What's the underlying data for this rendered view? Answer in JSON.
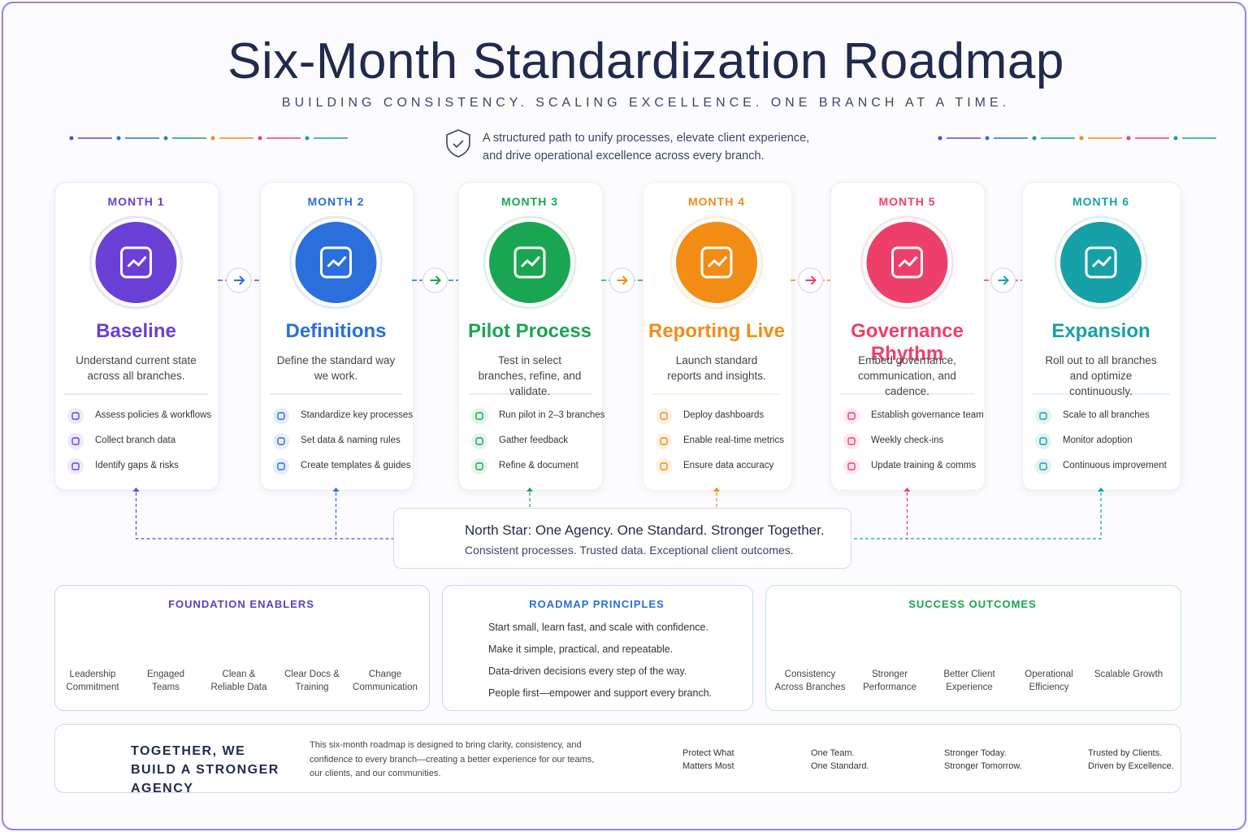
{
  "title": "Six-Month Standardization Roadmap",
  "subtitle": "BUILDING CONSISTENCY. SCALING EXCELLENCE. ONE BRANCH AT A TIME.",
  "intro": [
    "A structured path to unify processes, elevate client experience,",
    "and drive operational excellence across every branch."
  ],
  "months": [
    {
      "label": "MONTH 1",
      "title": "Baseline",
      "description": "Understand current state across all branches.",
      "color": "#6a3fd6",
      "items": [
        "Assess policies & workflows",
        "Collect branch data",
        "Identify gaps & risks"
      ]
    },
    {
      "label": "MONTH 2",
      "title": "Definitions",
      "description": "Define the standard way we work.",
      "color": "#2a6fdb",
      "items": [
        "Standardize key processes",
        "Set data & naming rules",
        "Create templates & guides"
      ]
    },
    {
      "label": "MONTH 3",
      "title": "Pilot Process",
      "description": "Test in select branches, refine, and validate.",
      "color": "#1aa552",
      "items": [
        "Run pilot in 2–3 branches",
        "Gather feedback",
        "Refine & document"
      ]
    },
    {
      "label": "MONTH 4",
      "title": "Reporting Live",
      "description": "Launch standard reports and insights.",
      "color": "#f28c14",
      "items": [
        "Deploy dashboards",
        "Enable real-time metrics",
        "Ensure data accuracy"
      ]
    },
    {
      "label": "MONTH 5",
      "title": "Governance Rhythm",
      "description": "Embed governance, communication, and cadence.",
      "color": "#ee3f6a",
      "items": [
        "Establish governance team",
        "Weekly check-ins",
        "Update training & comms"
      ]
    },
    {
      "label": "MONTH 6",
      "title": "Expansion",
      "description": "Roll out to all branches and optimize continuously.",
      "color": "#16a0a8",
      "items": [
        "Scale to all branches",
        "Monitor adoption",
        "Continuous improvement"
      ]
    }
  ],
  "north_star": {
    "title": "North Star: One Agency. One Standard. Stronger Together.",
    "subtitle": "Consistent processes. Trusted data. Exceptional client outcomes."
  },
  "foundation": {
    "title": "FOUNDATION ENABLERS",
    "items": [
      "Leadership Commitment",
      "Engaged Teams",
      "Clean & Reliable Data",
      "Clear Docs & Training",
      "Change Communication"
    ]
  },
  "principles": {
    "title": "ROADMAP PRINCIPLES",
    "items": [
      "Start small, learn fast, and scale with confidence.",
      "Make it simple, practical, and repeatable.",
      "Data-driven decisions every step of the way.",
      "People first—empower and support every branch."
    ]
  },
  "outcomes": {
    "title": "SUCCESS OUTCOMES",
    "items": [
      "Consistency Across Branches",
      "Stronger Performance",
      "Better Client Experience",
      "Operational Efficiency",
      "Scalable Growth"
    ]
  },
  "footer": {
    "title": "TOGETHER, WE BUILD A STRONGER AGENCY",
    "text": "This six-month roadmap is designed to bring clarity, consistency, and confidence to every branch—creating a better experience for our teams, our clients, and our communities.",
    "badges": [
      [
        "Protect What",
        "Matters Most"
      ],
      [
        "One Team.",
        "One Standard."
      ],
      [
        "Stronger Today.",
        "Stronger Tomorrow."
      ],
      [
        "Trusted by Clients.",
        "Driven by Excellence."
      ]
    ]
  }
}
